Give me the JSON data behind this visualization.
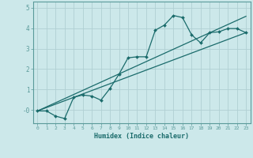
{
  "title": "",
  "xlabel": "Humidex (Indice chaleur)",
  "bg_color": "#cce8ea",
  "grid_color": "#b0d0d3",
  "line_color": "#1a6b6b",
  "xlim": [
    -0.5,
    23.5
  ],
  "ylim": [
    -0.65,
    5.3
  ],
  "xticks": [
    0,
    1,
    2,
    3,
    4,
    5,
    6,
    7,
    8,
    9,
    10,
    11,
    12,
    13,
    14,
    15,
    16,
    17,
    18,
    19,
    20,
    21,
    22,
    23
  ],
  "yticks": [
    0,
    1,
    2,
    3,
    4,
    5
  ],
  "ytick_labels": [
    "-0",
    "1",
    "2",
    "3",
    "4",
    "5"
  ],
  "line1_x": [
    0,
    1,
    2,
    3,
    4,
    5,
    6,
    7,
    8,
    9,
    10,
    11,
    12,
    13,
    14,
    15,
    16,
    17,
    18,
    19,
    20,
    21,
    22,
    23
  ],
  "line1_y": [
    -0.05,
    -0.05,
    -0.3,
    -0.42,
    0.62,
    0.73,
    0.68,
    0.48,
    1.05,
    1.75,
    2.55,
    2.6,
    2.6,
    3.9,
    4.15,
    4.62,
    4.52,
    3.68,
    3.28,
    3.78,
    3.82,
    3.98,
    3.98,
    3.78
  ],
  "line2_x": [
    0,
    23
  ],
  "line2_y": [
    -0.05,
    3.78
  ],
  "line3_x": [
    0,
    23
  ],
  "line3_y": [
    -0.05,
    4.58
  ]
}
